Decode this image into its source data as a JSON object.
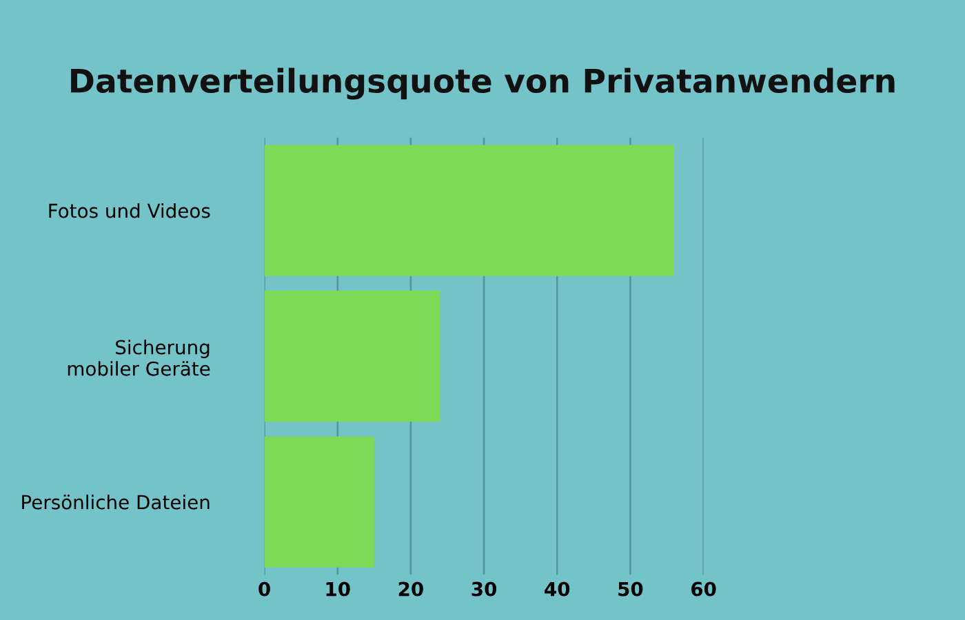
{
  "chart_data": {
    "type": "bar",
    "orientation": "horizontal",
    "title": "Datenverteilungsquote von Privatanwendern",
    "categories": [
      "Fotos und Videos",
      "Sicherung\nmobiler Geräte",
      "Persönliche Dateien"
    ],
    "values": [
      56,
      24,
      15
    ],
    "color": "#7ed957",
    "xlim": [
      0,
      60
    ],
    "xticks": [
      0,
      10,
      20,
      30,
      40,
      50,
      60
    ],
    "grid": "x",
    "legend": false
  }
}
